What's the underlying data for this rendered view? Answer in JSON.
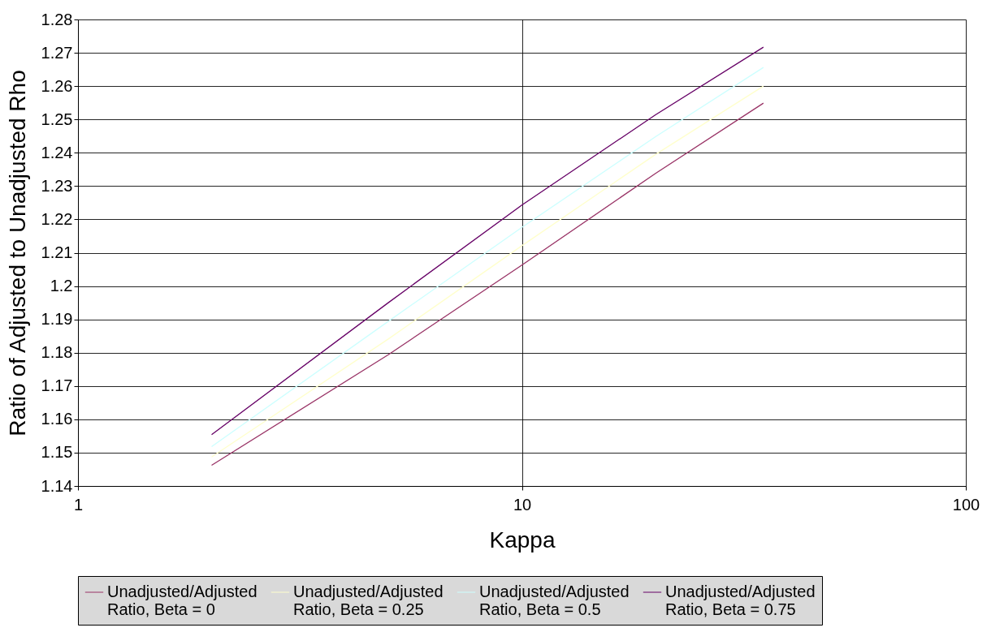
{
  "chart_data": {
    "type": "line",
    "xlabel": "Kappa",
    "ylabel": "Ratio of Adjusted to Unadjusted Rho",
    "log": "x",
    "grid": true,
    "legend": "bottom",
    "marker": "none",
    "line_style": "solid",
    "xlim": [
      1,
      100
    ],
    "xticks": [
      1,
      10,
      100
    ],
    "ylim": [
      1.14,
      1.28
    ],
    "yticks": [
      1.14,
      1.15,
      1.16,
      1.17,
      1.18,
      1.19,
      1.2,
      1.21,
      1.22,
      1.23,
      1.24,
      1.25,
      1.26,
      1.27,
      1.28
    ],
    "x": [
      2,
      5,
      10,
      20,
      35
    ],
    "series": [
      {
        "name": "Unadjusted/Adjusted Ratio, Beta = 0",
        "color": "#993366",
        "values": [
          1.1462,
          1.1794,
          1.2063,
          1.2338,
          1.2549
        ]
      },
      {
        "name": "Unadjusted/Adjusted Ratio, Beta = 0.25",
        "color": "#ffffcc",
        "values": [
          1.1487,
          1.1841,
          1.2121,
          1.2395,
          1.26
        ]
      },
      {
        "name": "Unadjusted/Adjusted Ratio, Beta = 0.5",
        "color": "#ccffff",
        "values": [
          1.1518,
          1.1894,
          1.2176,
          1.2448,
          1.2656
        ]
      },
      {
        "name": "Unadjusted/Adjusted Ratio, Beta = 0.75",
        "color": "#660066",
        "values": [
          1.1554,
          1.195,
          1.2243,
          1.2514,
          1.2717
        ]
      }
    ]
  }
}
